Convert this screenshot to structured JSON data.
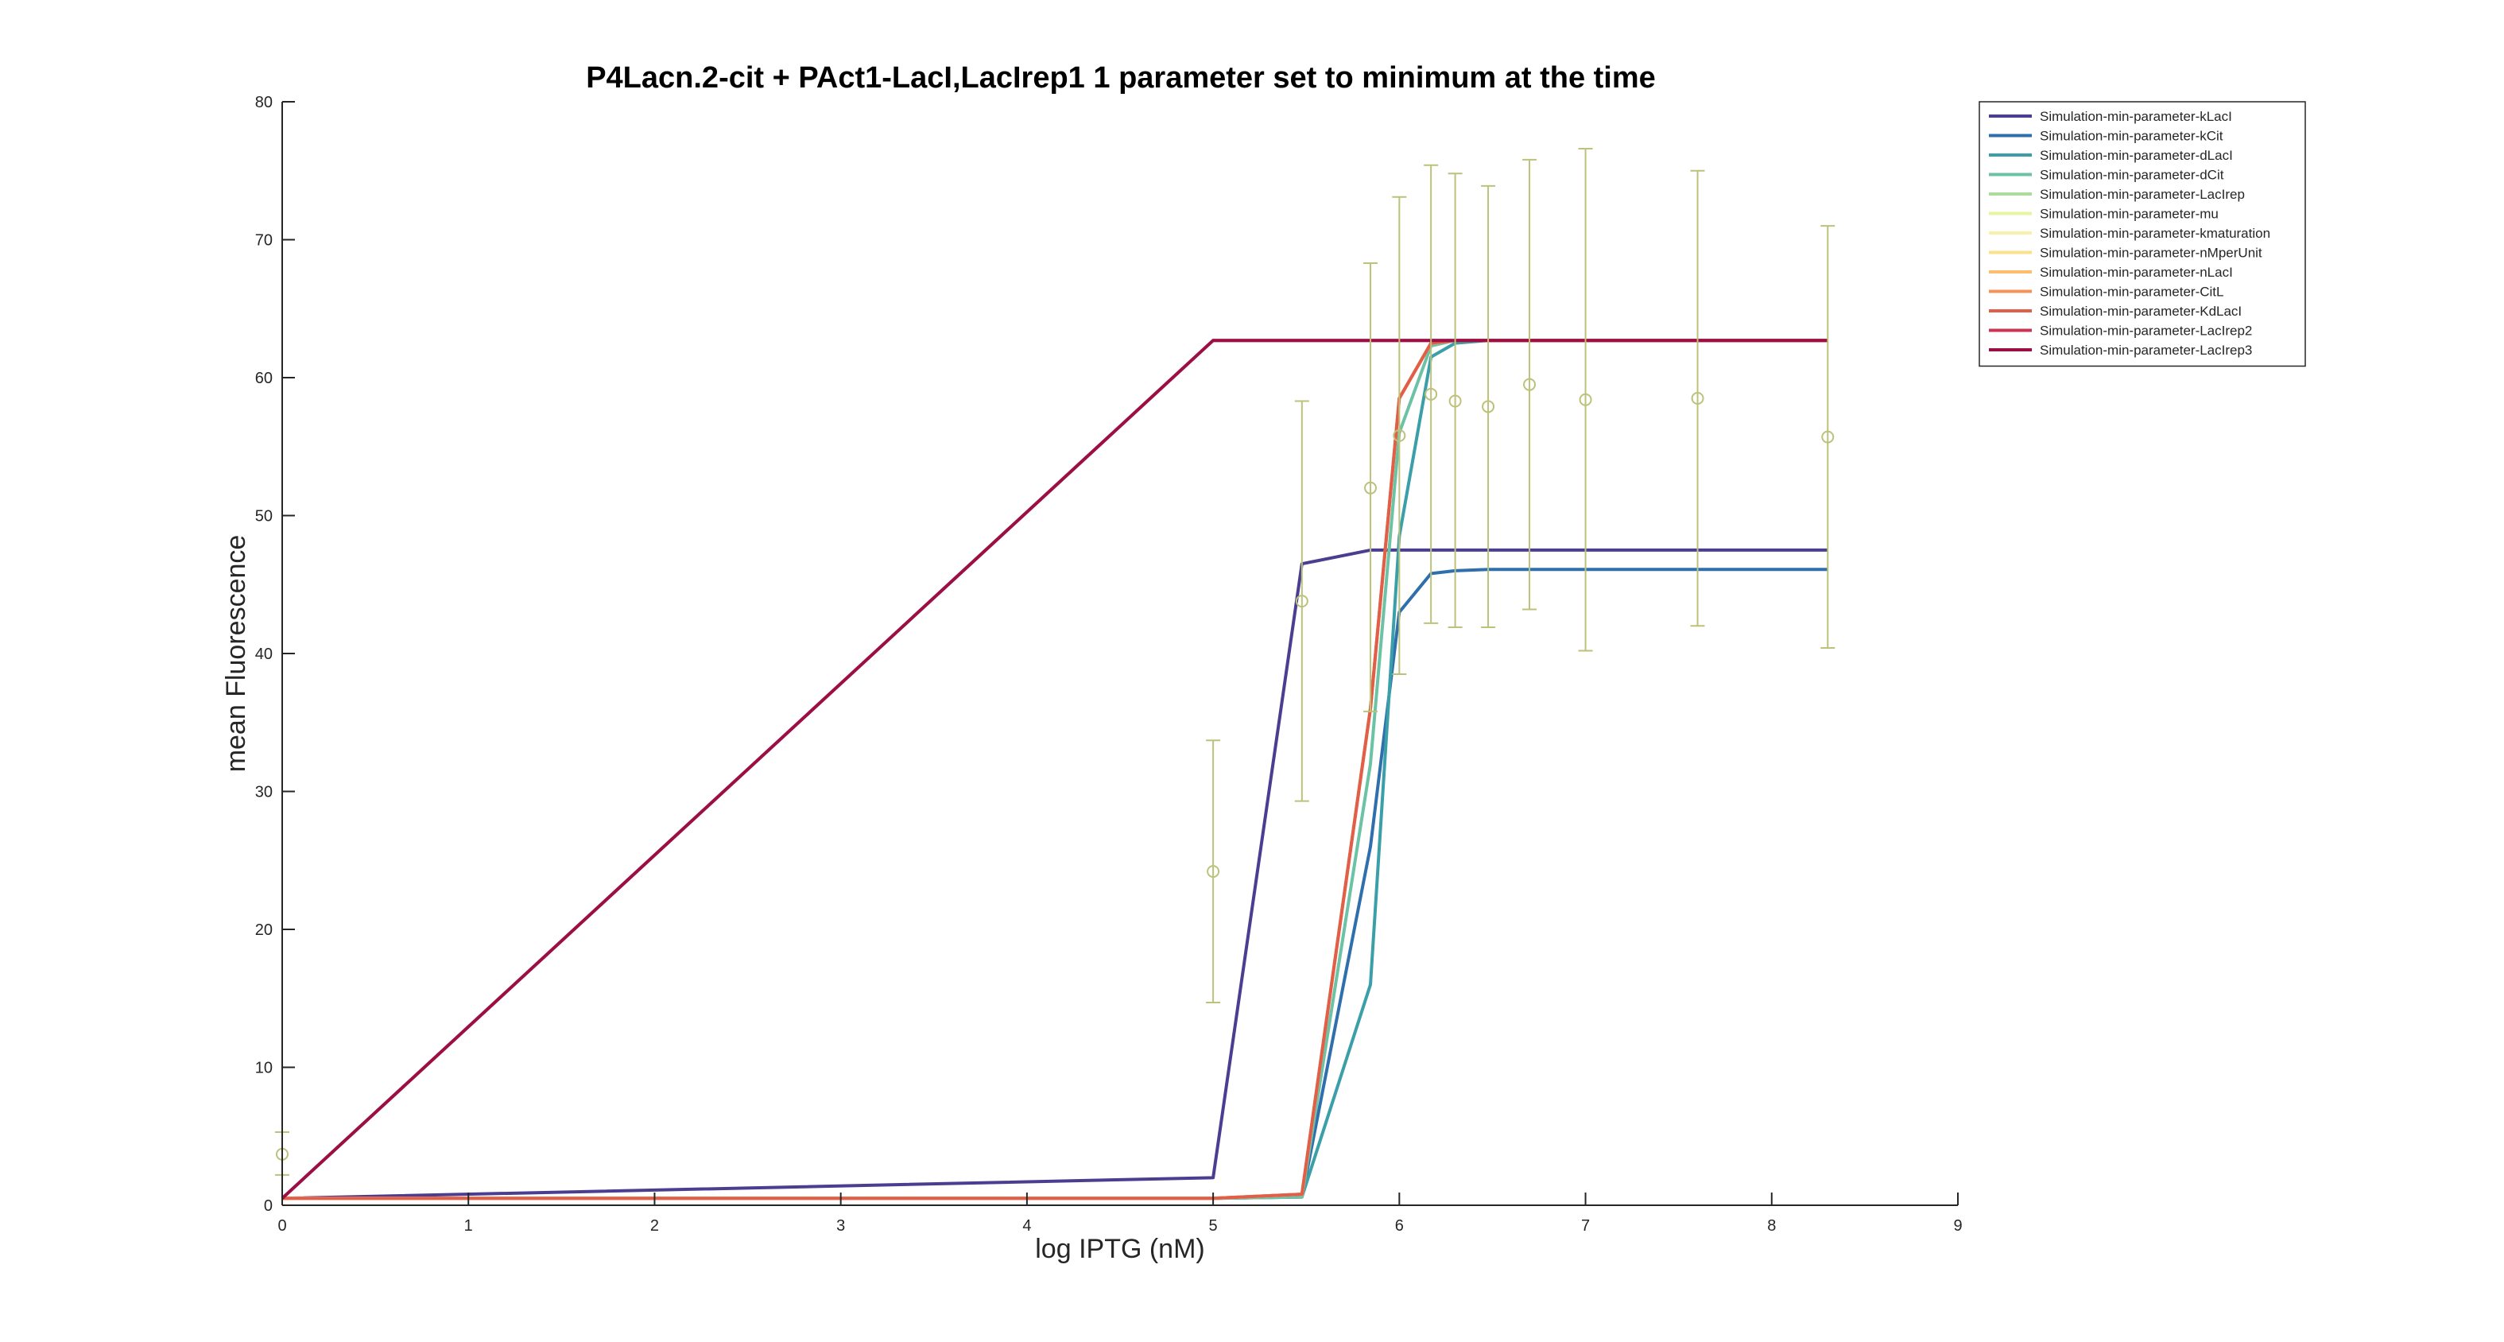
{
  "chart_data": {
    "type": "line",
    "title": "P4Lacn.2-cit + PAct1-LacI,LacIrep1 1 parameter set to minimum at the time",
    "xlabel": "log IPTG (nM)",
    "ylabel": "mean Fluorescence",
    "xlim": [
      0,
      9
    ],
    "ylim": [
      0,
      80
    ],
    "xticks": [
      0,
      1,
      2,
      3,
      4,
      5,
      6,
      7,
      8,
      9
    ],
    "yticks": [
      0,
      10,
      20,
      30,
      40,
      50,
      60,
      70,
      80
    ],
    "grid": false,
    "legend_position": "top-right outside",
    "x": [
      0,
      5,
      5.477,
      5.845,
      6,
      6.17,
      6.3,
      6.477,
      6.699,
      7,
      7.602,
      8.301
    ],
    "series": [
      {
        "name": "Simulation-min-parameter-kLacI",
        "color": "#4b3e91",
        "values": [
          0.5,
          2.0,
          46.5,
          47.5,
          47.5,
          47.5,
          47.5,
          47.5,
          47.5,
          47.5,
          47.5,
          47.5
        ]
      },
      {
        "name": "Simulation-min-parameter-kCit",
        "color": "#2f6fad",
        "values": [
          0.5,
          0.5,
          0.6,
          26.0,
          43.0,
          45.8,
          46.0,
          46.1,
          46.1,
          46.1,
          46.1,
          46.1
        ]
      },
      {
        "name": "Simulation-min-parameter-dLacI",
        "color": "#3a9fa8",
        "values": [
          0.5,
          0.5,
          0.6,
          16.0,
          48.5,
          61.5,
          62.5,
          62.7,
          62.7,
          62.7,
          62.7,
          62.7
        ]
      },
      {
        "name": "Simulation-min-parameter-dCit",
        "color": "#6cc2a4",
        "values": [
          0.5,
          0.5,
          0.6,
          32.0,
          56.0,
          62.3,
          62.7,
          62.7,
          62.7,
          62.7,
          62.7,
          62.7
        ]
      },
      {
        "name": "Simulation-min-parameter-LacIrep",
        "color": "#acdc9b",
        "values": [
          0.5,
          0.5,
          0.8,
          36.0,
          58.5,
          62.5,
          62.7,
          62.7,
          62.7,
          62.7,
          62.7,
          62.7
        ]
      },
      {
        "name": "Simulation-min-parameter-mu",
        "color": "#e6f5a0",
        "values": [
          0.5,
          0.5,
          0.8,
          36.0,
          58.5,
          62.5,
          62.7,
          62.7,
          62.7,
          62.7,
          62.7,
          62.7
        ]
      },
      {
        "name": "Simulation-min-parameter-kmaturation",
        "color": "#f7f1aa",
        "values": [
          0.5,
          0.5,
          0.8,
          36.0,
          58.5,
          62.5,
          62.7,
          62.7,
          62.7,
          62.7,
          62.7,
          62.7
        ]
      },
      {
        "name": "Simulation-min-parameter-nMperUnit",
        "color": "#fde08b",
        "values": [
          0.5,
          0.5,
          0.8,
          36.0,
          58.5,
          62.5,
          62.7,
          62.7,
          62.7,
          62.7,
          62.7,
          62.7
        ]
      },
      {
        "name": "Simulation-min-parameter-nLacI",
        "color": "#fdbf6f",
        "values": [
          0.5,
          0.5,
          0.8,
          36.0,
          58.5,
          62.5,
          62.7,
          62.7,
          62.7,
          62.7,
          62.7,
          62.7
        ]
      },
      {
        "name": "Simulation-min-parameter-CitL",
        "color": "#f4925a",
        "values": [
          0.5,
          0.5,
          0.8,
          36.0,
          58.5,
          62.5,
          62.7,
          62.7,
          62.7,
          62.7,
          62.7,
          62.7
        ]
      },
      {
        "name": "Simulation-min-parameter-KdLacI",
        "color": "#e15f4a",
        "values": [
          0.5,
          0.5,
          0.8,
          36.0,
          58.5,
          62.5,
          62.7,
          62.7,
          62.7,
          62.7,
          62.7,
          62.7
        ]
      },
      {
        "name": "Simulation-min-parameter-LacIrep2",
        "color": "#cb3452",
        "values": [
          0.5,
          62.7,
          62.7,
          62.7,
          62.7,
          62.7,
          62.7,
          62.7,
          62.7,
          62.7,
          62.7,
          62.7
        ]
      },
      {
        "name": "Simulation-min-parameter-LacIrep3",
        "color": "#9b0f45",
        "values": [
          0.5,
          62.7,
          62.7,
          62.7,
          62.7,
          62.7,
          62.7,
          62.7,
          62.7,
          62.7,
          62.7,
          62.7
        ]
      }
    ],
    "experimental": {
      "color": "#bcc27a",
      "points": [
        {
          "x": 0,
          "y": 3.7,
          "lower": 2.2,
          "upper": 5.3
        },
        {
          "x": 5,
          "y": 24.2,
          "lower": 14.7,
          "upper": 33.7
        },
        {
          "x": 5.477,
          "y": 43.8,
          "lower": 29.3,
          "upper": 58.3
        },
        {
          "x": 5.845,
          "y": 52.0,
          "lower": 35.8,
          "upper": 68.3
        },
        {
          "x": 6,
          "y": 55.8,
          "lower": 38.5,
          "upper": 73.1
        },
        {
          "x": 6.17,
          "y": 58.8,
          "lower": 42.2,
          "upper": 75.4
        },
        {
          "x": 6.3,
          "y": 58.3,
          "lower": 41.9,
          "upper": 74.8
        },
        {
          "x": 6.477,
          "y": 57.9,
          "lower": 41.9,
          "upper": 73.9
        },
        {
          "x": 6.699,
          "y": 59.5,
          "lower": 43.2,
          "upper": 75.8
        },
        {
          "x": 7,
          "y": 58.4,
          "lower": 40.2,
          "upper": 76.6
        },
        {
          "x": 7.602,
          "y": 58.5,
          "lower": 42.0,
          "upper": 75.0
        },
        {
          "x": 8.301,
          "y": 55.7,
          "lower": 40.4,
          "upper": 71.0
        }
      ]
    }
  }
}
